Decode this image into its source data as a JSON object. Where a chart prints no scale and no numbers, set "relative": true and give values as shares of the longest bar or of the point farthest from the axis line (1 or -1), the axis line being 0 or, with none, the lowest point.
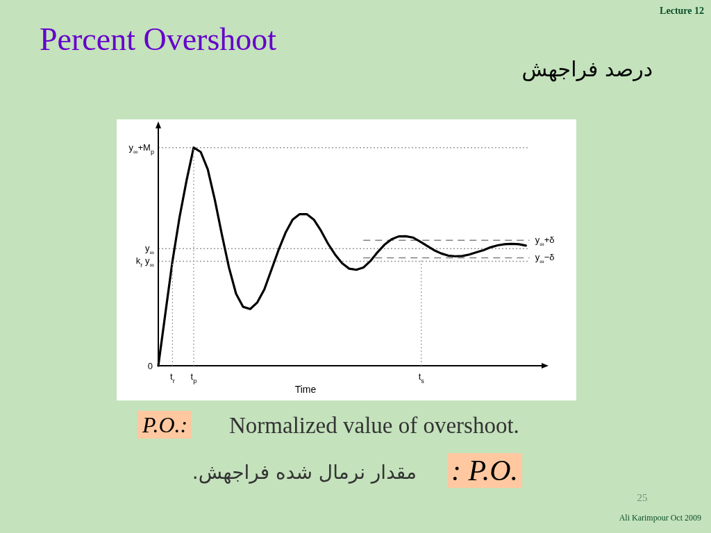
{
  "chart_data": {
    "type": "line",
    "relative": true,
    "title": "Percent Overshoot",
    "subtitle": "درصد فراجهش",
    "xlabel": "Time",
    "categories": [
      null,
      null,
      null,
      null,
      null,
      null,
      null,
      null,
      null,
      null,
      null,
      null,
      null,
      null,
      null,
      null,
      null,
      null,
      null,
      null,
      null,
      null,
      null,
      null,
      null,
      null,
      null,
      null,
      null,
      null,
      null,
      null,
      null,
      null,
      null,
      null,
      null,
      null,
      null,
      null,
      null,
      null,
      null,
      null,
      null,
      null,
      null,
      null,
      null,
      null,
      null,
      null,
      null
    ],
    "series": [
      {
        "color": "#000000",
        "values": [
          0,
          0.24,
          0.479,
          0.68,
          0.85,
          1.0,
          0.98,
          0.9,
          0.76,
          0.6,
          0.45,
          0.33,
          0.27,
          0.26,
          0.29,
          0.35,
          0.44,
          0.53,
          0.61,
          0.67,
          0.695,
          0.695,
          0.67,
          0.62,
          0.56,
          0.51,
          0.47,
          0.445,
          0.44,
          0.45,
          0.48,
          0.52,
          0.555,
          0.58,
          0.593,
          0.594,
          0.588,
          0.57,
          0.55,
          0.53,
          0.515,
          0.505,
          0.502,
          0.503,
          0.51,
          0.52,
          0.53,
          0.543,
          0.552,
          0.557,
          0.559,
          0.557,
          0.551
        ]
      }
    ],
    "marker": "none",
    "line_style": "solid",
    "ref_lines": [
      {
        "axis": "y",
        "value": 1.0,
        "label": "y$_{∞}$+M$_{p}$",
        "line_style": "dotted",
        "color": "#999999"
      },
      {
        "axis": "y",
        "value": 0.537,
        "label": "y$_{∞}$",
        "line_style": "dotted",
        "color": "#999999"
      },
      {
        "axis": "y",
        "value": 0.479,
        "label": "k$_{r}$ y$_{∞}$",
        "line_style": "dotted",
        "color": "#999999"
      },
      {
        "axis": "y",
        "value": 0.575,
        "label": "y$_{∞}$+δ",
        "line_style": "dashed",
        "color": "#808080"
      },
      {
        "axis": "y",
        "value": 0.495,
        "label": "y$_{∞}$−δ",
        "line_style": "dashed",
        "color": "#808080"
      }
    ],
    "annotations": [
      "0",
      "Lecture 12",
      "P.O.:",
      "Normalized value of overshoot.",
      "مقدار نرمال شده فراجهش.",
      ": P.O.",
      "25",
      "Ali Karimpour  Oct 2009",
      "t$_{r}$",
      "t$_{p}$",
      "t$_{s}$"
    ]
  }
}
